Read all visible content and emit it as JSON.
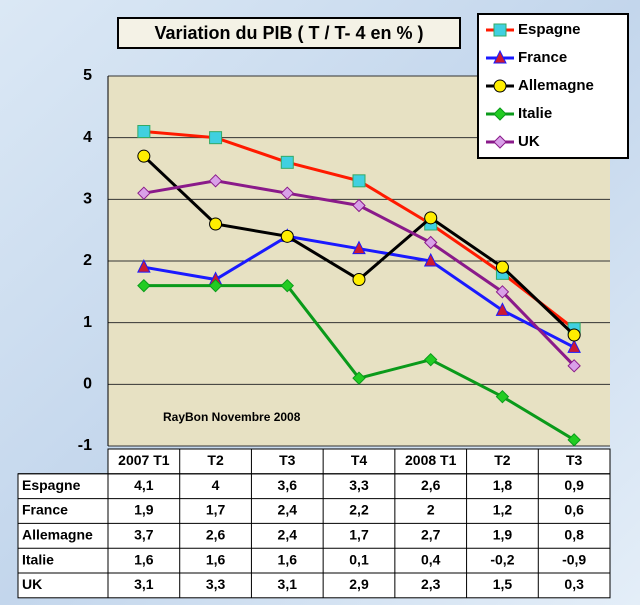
{
  "chart_data": {
    "type": "line",
    "title": "Variation du PIB ( T / T- 4 en % )",
    "annotation": "RayBon  Novembre  2008",
    "categories": [
      "2007 T1",
      "T2",
      "T3",
      "T4",
      "2008 T1",
      "T2",
      "T3"
    ],
    "ylim": [
      -1,
      5
    ],
    "yticks": [
      -1,
      0,
      1,
      2,
      3,
      4,
      5
    ],
    "grid": true,
    "legend": "top-right",
    "series": [
      {
        "name": "Espagne",
        "color": "#ff1a00",
        "marker": "square",
        "marker_color": "#40d0e0",
        "values": [
          4.1,
          4,
          3.6,
          3.3,
          2.6,
          1.8,
          0.9
        ],
        "value_labels": [
          "4,1",
          "4",
          "3,6",
          "3,3",
          "2,6",
          "1,8",
          "0,9"
        ]
      },
      {
        "name": "France",
        "color": "#1a1aff",
        "marker": "triangle",
        "marker_color": "#cc1a33",
        "values": [
          1.9,
          1.7,
          2.4,
          2.2,
          2,
          1.2,
          0.6
        ],
        "value_labels": [
          "1,9",
          "1,7",
          "2,4",
          "2,2",
          "2",
          "1,2",
          "0,6"
        ]
      },
      {
        "name": "Allemagne",
        "color": "#000000",
        "marker": "circle",
        "marker_color": "#ffee00",
        "values": [
          3.7,
          2.6,
          2.4,
          1.7,
          2.7,
          1.9,
          0.8
        ],
        "value_labels": [
          "3,7",
          "2,6",
          "2,4",
          "1,7",
          "2,7",
          "1,9",
          "0,8"
        ]
      },
      {
        "name": "Italie",
        "color": "#0a9a1a",
        "marker": "diamond",
        "marker_color": "#22cc22",
        "values": [
          1.6,
          1.6,
          1.6,
          0.1,
          0.4,
          -0.2,
          -0.9
        ],
        "value_labels": [
          "1,6",
          "1,6",
          "1,6",
          "0,1",
          "0,4",
          "-0,2",
          "-0,9"
        ]
      },
      {
        "name": "UK",
        "color": "#8a1a8a",
        "marker": "diamond",
        "marker_color": "#d9a0e8",
        "values": [
          3.1,
          3.3,
          3.1,
          2.9,
          2.3,
          1.5,
          0.3
        ],
        "value_labels": [
          "3,1",
          "3,3",
          "3,1",
          "2,9",
          "2,3",
          "1,5",
          "0,3"
        ]
      }
    ]
  }
}
